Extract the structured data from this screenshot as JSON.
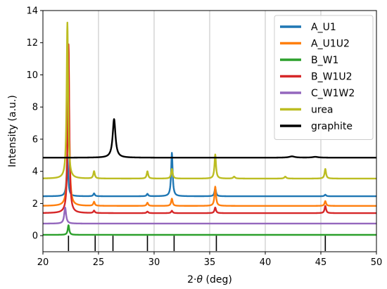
{
  "chart_data": {
    "type": "line",
    "title": "",
    "xlabel_prefix": "2·",
    "xlabel_theta": "θ",
    "xlabel_suffix": " (deg)",
    "ylabel": "Intensity (a.u.)",
    "xlim": [
      20,
      50
    ],
    "ylim": [
      -1.0,
      14.0
    ],
    "xticks": [
      20,
      25,
      30,
      35,
      40,
      45,
      50
    ],
    "yticks": [
      0,
      2,
      4,
      6,
      8,
      10,
      12,
      14
    ],
    "grid": "x-only",
    "legend_placement": "top-right",
    "series": [
      {
        "name": "A_U1",
        "color": "#1f77b4",
        "baseline": 2.45,
        "peaks": [
          [
            22.2,
            2.6,
            0.08
          ],
          [
            24.6,
            0.18,
            0.08
          ],
          [
            29.4,
            0.15,
            0.08
          ],
          [
            31.6,
            2.7,
            0.08
          ],
          [
            35.5,
            0.5,
            0.08
          ],
          [
            45.4,
            0.1,
            0.08
          ]
        ]
      },
      {
        "name": "A_U1U2",
        "color": "#ff7f0e",
        "baseline": 1.85,
        "peaks": [
          [
            22.3,
            10.0,
            0.08
          ],
          [
            24.6,
            0.25,
            0.08
          ],
          [
            29.4,
            0.2,
            0.08
          ],
          [
            31.6,
            0.45,
            0.08
          ],
          [
            35.5,
            1.2,
            0.08
          ],
          [
            45.4,
            0.3,
            0.08
          ]
        ]
      },
      {
        "name": "B_W1",
        "color": "#2ca02c",
        "baseline": 0.05,
        "peaks": [
          [
            22.3,
            0.6,
            0.08
          ]
        ]
      },
      {
        "name": "B_W1U2",
        "color": "#d62728",
        "baseline": 1.4,
        "peaks": [
          [
            22.3,
            10.5,
            0.08
          ],
          [
            24.6,
            0.15,
            0.08
          ],
          [
            29.4,
            0.1,
            0.08
          ],
          [
            31.6,
            0.15,
            0.08
          ],
          [
            35.5,
            0.35,
            0.08
          ],
          [
            45.4,
            0.45,
            0.08
          ]
        ]
      },
      {
        "name": "C_W1W2",
        "color": "#9467bd",
        "baseline": 0.75,
        "peaks": [
          [
            22.0,
            1.0,
            0.1
          ]
        ]
      },
      {
        "name": "urea",
        "color": "#bcbd22",
        "baseline": 3.55,
        "peaks": [
          [
            22.2,
            9.7,
            0.08
          ],
          [
            24.6,
            0.45,
            0.08
          ],
          [
            29.4,
            0.45,
            0.08
          ],
          [
            31.6,
            0.6,
            0.08
          ],
          [
            35.5,
            1.5,
            0.08
          ],
          [
            37.2,
            0.12,
            0.1
          ],
          [
            41.8,
            0.12,
            0.1
          ],
          [
            45.4,
            0.6,
            0.08
          ]
        ]
      },
      {
        "name": "graphite",
        "color": "#000000",
        "baseline": 4.85,
        "peaks": [
          [
            26.4,
            2.4,
            0.15
          ],
          [
            42.4,
            0.08,
            0.3
          ],
          [
            44.5,
            0.05,
            0.3
          ]
        ]
      }
    ],
    "reference_lines": [
      22.3,
      24.7,
      26.3,
      29.4,
      31.8,
      35.6,
      45.4
    ],
    "reference_line_range": [
      -1.0,
      0.0
    ]
  }
}
